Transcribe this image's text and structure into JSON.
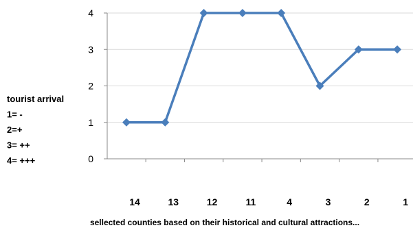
{
  "chart_data": {
    "type": "line",
    "categories": [
      "14",
      "13",
      "12",
      "11",
      "4",
      "3",
      "2",
      "1"
    ],
    "series": [
      {
        "values": [
          1,
          1,
          4,
          4,
          4,
          2,
          3,
          3
        ]
      }
    ],
    "ylim": [
      0,
      4
    ],
    "yticks": [
      0,
      1,
      2,
      3,
      4
    ],
    "ylabel_lines": [
      "tourist arrival",
      "1= -",
      "2=+",
      "3= ++",
      "4= +++"
    ],
    "xlabel": "sellected counties based on their historical and cultural attractions...",
    "grid": true,
    "line_color": "#4a7ebb",
    "grid_color": "#d9d9d9"
  }
}
